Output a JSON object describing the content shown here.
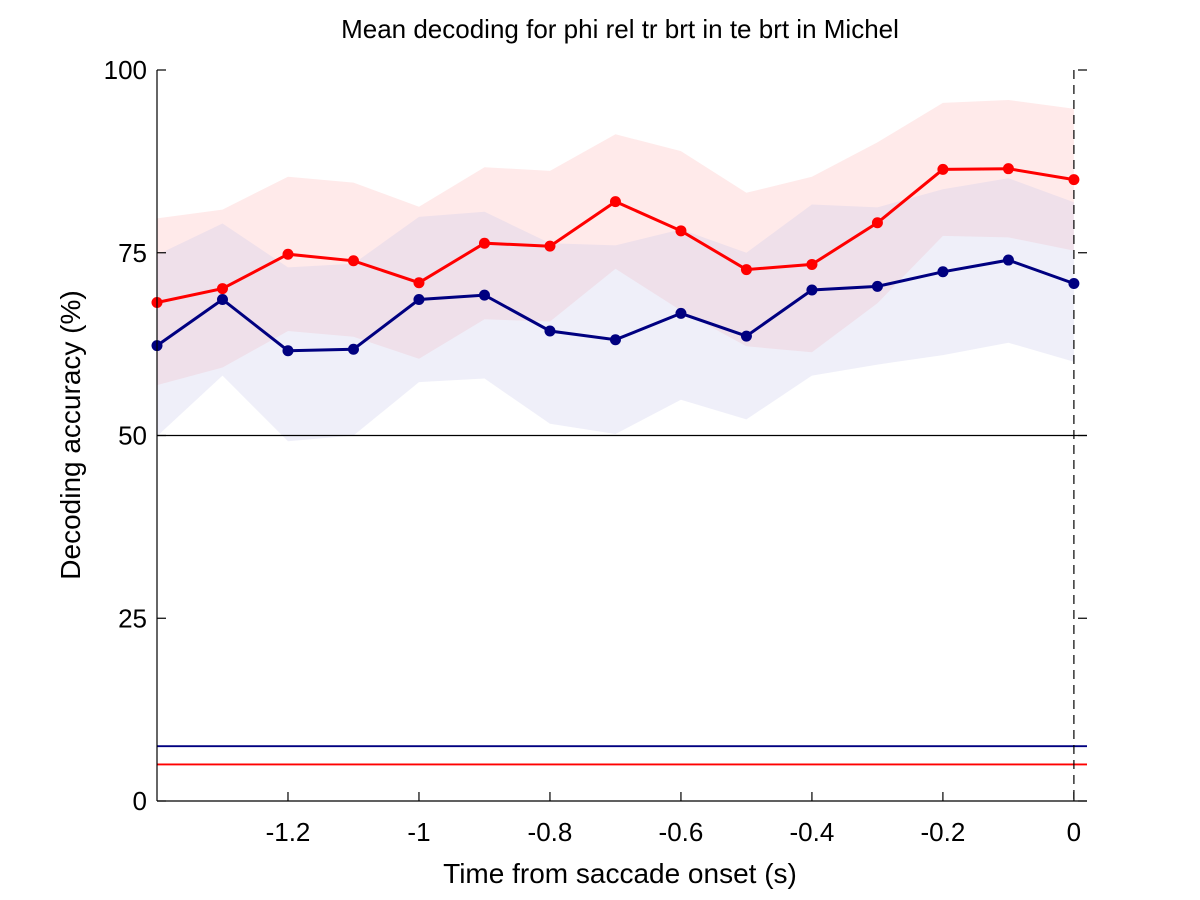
{
  "chart_data": {
    "type": "line",
    "title": "Mean decoding for phi rel tr brt in te brt in  Michel",
    "xlabel": "Time from saccade onset (s)",
    "ylabel": "Decoding accuracy (%)",
    "xlim": [
      -1.4,
      0.02
    ],
    "ylim": [
      0,
      100
    ],
    "xticks": [
      -1.2,
      -1,
      -0.8,
      -0.6,
      -0.4,
      -0.2,
      0
    ],
    "xtick_labels": [
      "-1.2",
      "-1",
      "-0.8",
      "-0.6",
      "-0.4",
      "-0.2",
      "0"
    ],
    "yticks": [
      0,
      25,
      50,
      75,
      100
    ],
    "ytick_labels": [
      "0",
      "25",
      "50",
      "75",
      "100"
    ],
    "x": [
      -1.4,
      -1.3,
      -1.2,
      -1.1,
      -1.0,
      -0.9,
      -0.8,
      -0.7,
      -0.6,
      -0.5,
      -0.4,
      -0.3,
      -0.2,
      -0.1,
      0.0
    ],
    "series": [
      {
        "color": "#ff0000",
        "band_color": "#ffb3b3",
        "values": [
          68.2,
          70.1,
          74.8,
          73.9,
          70.9,
          76.3,
          75.9,
          82.0,
          78.0,
          72.7,
          73.4,
          79.1,
          86.4,
          86.5,
          85.0
        ],
        "upper": [
          79.7,
          80.9,
          85.4,
          84.6,
          81.3,
          86.7,
          86.2,
          91.2,
          88.9,
          83.2,
          85.4,
          90.1,
          95.5,
          95.9,
          94.7
        ],
        "lower": [
          56.9,
          59.3,
          64.3,
          63.5,
          60.5,
          65.9,
          65.6,
          72.8,
          67.1,
          62.2,
          61.4,
          68.1,
          77.3,
          77.1,
          75.3
        ],
        "chance": 5
      },
      {
        "color": "#000080",
        "band_color": "#c5c5ea",
        "values": [
          62.3,
          68.6,
          61.6,
          61.8,
          68.6,
          69.2,
          64.3,
          63.1,
          66.7,
          63.6,
          69.9,
          70.4,
          72.4,
          74.0,
          70.8
        ],
        "upper": [
          74.7,
          79.0,
          73.0,
          73.5,
          79.9,
          80.6,
          76.3,
          76.0,
          78.2,
          75.0,
          81.6,
          81.2,
          83.7,
          85.2,
          81.9
        ],
        "lower": [
          49.9,
          58.2,
          49.2,
          50.0,
          57.3,
          57.8,
          51.6,
          50.2,
          54.9,
          52.2,
          58.2,
          59.7,
          61.0,
          62.7,
          60.1
        ],
        "chance": 7.5
      }
    ],
    "reference_hline": 50,
    "reference_vline": 0,
    "grid": false,
    "legend": "none"
  }
}
